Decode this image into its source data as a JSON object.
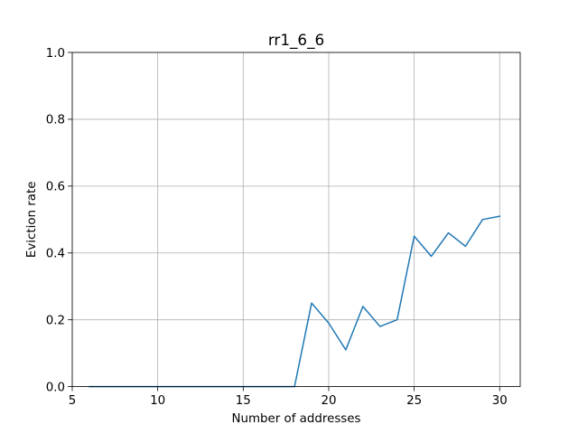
{
  "chart_data": {
    "type": "line",
    "title": "rr1_6_6",
    "xlabel": "Number of addresses",
    "ylabel": "Eviction rate",
    "xlim": [
      5,
      31.2
    ],
    "ylim": [
      0.0,
      1.0
    ],
    "xticks": [
      5,
      10,
      15,
      20,
      25,
      30
    ],
    "yticks": [
      0.0,
      0.2,
      0.4,
      0.6,
      0.8,
      1.0
    ],
    "xtick_labels": [
      "5",
      "10",
      "15",
      "20",
      "25",
      "30"
    ],
    "ytick_labels": [
      "0.0",
      "0.2",
      "0.4",
      "0.6",
      "0.8",
      "1.0"
    ],
    "grid": true,
    "series": [
      {
        "color": "#1f77b4",
        "x": [
          6,
          7,
          8,
          9,
          10,
          11,
          12,
          13,
          14,
          15,
          16,
          17,
          18,
          19,
          20,
          21,
          22,
          23,
          24,
          25,
          26,
          27,
          28,
          29,
          30
        ],
        "values": [
          0.0,
          0.0,
          0.0,
          0.0,
          0.0,
          0.0,
          0.0,
          0.0,
          0.0,
          0.0,
          0.0,
          0.0,
          0.0,
          0.25,
          0.19,
          0.11,
          0.24,
          0.18,
          0.2,
          0.45,
          0.39,
          0.46,
          0.42,
          0.5,
          0.51
        ]
      }
    ]
  }
}
